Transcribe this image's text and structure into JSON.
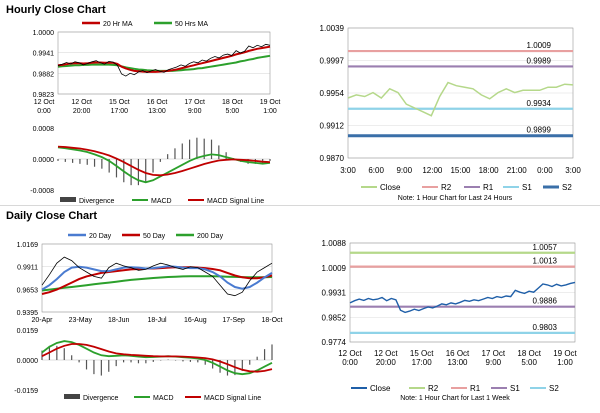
{
  "sections": {
    "hourly": "Hourly Close Chart",
    "daily": "Daily Close Chart"
  },
  "chart_data": [
    {
      "id": "hourly_price",
      "type": "line",
      "legend": [
        "20 Hr MA",
        "50 Hrs MA"
      ],
      "ytick_labels": [
        "1.0000",
        "0.9941",
        "0.9882",
        "0.9823"
      ],
      "ylim": [
        0.9823,
        1.0
      ],
      "xtick_labels": [
        [
          "12 Oct",
          "0:00"
        ],
        [
          "12 Oct",
          "20:00"
        ],
        [
          "15 Oct",
          "17:00"
        ],
        [
          "16 Oct",
          "13:00"
        ],
        [
          "17 Oct",
          "9:00"
        ],
        [
          "18 Oct",
          "5:00"
        ],
        [
          "19 Oct",
          "1:00"
        ]
      ],
      "series": [
        {
          "name": "Close",
          "color": "#000000",
          "values": [
            0.9904,
            0.9908,
            0.9913,
            0.9909,
            0.9915,
            0.9912,
            0.9906,
            0.991,
            0.9915,
            0.9918,
            0.9912,
            0.9908,
            0.9916,
            0.9914,
            0.9905,
            0.988,
            0.9874,
            0.9882,
            0.9878,
            0.9886,
            0.989,
            0.9884,
            0.9889,
            0.9893,
            0.9888,
            0.9885,
            0.9892,
            0.9896,
            0.99,
            0.9906,
            0.9902,
            0.991,
            0.9915,
            0.9912,
            0.992,
            0.9917,
            0.9925,
            0.993,
            0.9926,
            0.9934,
            0.9937,
            0.9933,
            0.9947,
            0.994,
            0.9945,
            0.996,
            0.9955,
            0.9962,
            0.9958,
            0.9965,
            0.9962
          ]
        },
        {
          "name": "20 Hr MA",
          "color": "#c00000",
          "values": [
            0.9905,
            0.9906,
            0.9908,
            0.991,
            0.9911,
            0.9911,
            0.991,
            0.9911,
            0.9912,
            0.9913,
            0.9913,
            0.9912,
            0.9912,
            0.9912,
            0.9909,
            0.9901,
            0.9896,
            0.9892,
            0.9889,
            0.9888,
            0.9887,
            0.9886,
            0.9886,
            0.9886,
            0.9887,
            0.9888,
            0.9889,
            0.9891,
            0.9893,
            0.9896,
            0.9899,
            0.9902,
            0.9905,
            0.9908,
            0.9911,
            0.9914,
            0.9917,
            0.992,
            0.9923,
            0.9926,
            0.9929,
            0.9932,
            0.9936,
            0.9939,
            0.9942,
            0.9946,
            0.9949,
            0.9952,
            0.9954,
            0.9956,
            0.9958
          ]
        },
        {
          "name": "50 Hrs MA",
          "color": "#2ca02c",
          "values": [
            0.9901,
            0.9902,
            0.9903,
            0.9904,
            0.9905,
            0.9905,
            0.9906,
            0.9906,
            0.9907,
            0.9907,
            0.9907,
            0.9907,
            0.9907,
            0.9906,
            0.9905,
            0.9902,
            0.9899,
            0.9897,
            0.9895,
            0.9893,
            0.9892,
            0.9891,
            0.989,
            0.9889,
            0.9889,
            0.9889,
            0.9889,
            0.9889,
            0.989,
            0.9891,
            0.9892,
            0.9893,
            0.9894,
            0.9896,
            0.9897,
            0.9899,
            0.9901,
            0.9903,
            0.9905,
            0.9907,
            0.9909,
            0.9911,
            0.9913,
            0.9916,
            0.9918,
            0.9921,
            0.9923,
            0.9926,
            0.9928,
            0.993,
            0.9932
          ]
        }
      ]
    },
    {
      "id": "hourly_macd",
      "type": "line",
      "legend": [
        "Divergence",
        "MACD",
        "MACD Signal Line"
      ],
      "ytick_labels": [
        "0.0008",
        "0.0000",
        "-0.0008"
      ],
      "ylim": [
        -0.0008,
        0.0008
      ],
      "series": [
        {
          "name": "MACD",
          "color": "#2ca02c",
          "values": [
            0.0003,
            0.00028,
            0.00025,
            0.00022,
            0.00018,
            0.00012,
            5e-05,
            -5e-05,
            -0.00018,
            -0.00032,
            -0.00045,
            -0.00055,
            -0.0006,
            -0.00055,
            -0.00045,
            -0.00035,
            -0.00025,
            -0.00015,
            -5e-05,
            3e-05,
            8e-05,
            0.00012,
            0.0001,
            5e-05,
            0.0,
            -5e-05,
            -8e-05,
            -0.0001,
            -0.00012,
            -0.0001
          ]
        },
        {
          "name": "MACD Signal Line",
          "color": "#c00000",
          "values": [
            0.00032,
            0.00031,
            0.00029,
            0.00027,
            0.00024,
            0.0002,
            0.00015,
            9e-05,
            1e-05,
            -8e-05,
            -0.00018,
            -0.00028,
            -0.00036,
            -0.00041,
            -0.00042,
            -0.0004,
            -0.00036,
            -0.00031,
            -0.00025,
            -0.00019,
            -0.00013,
            -8e-05,
            -4e-05,
            -2e-05,
            -1e-05,
            -2e-05,
            -3e-05,
            -5e-05,
            -7e-05,
            -8e-05
          ]
        }
      ]
    },
    {
      "id": "hourly_pivots",
      "type": "line",
      "legend": [
        "Close",
        "R2",
        "R1",
        "S1",
        "S2"
      ],
      "ytick_labels": [
        "1.0039",
        "0.9997",
        "0.9954",
        "0.9912",
        "0.9870"
      ],
      "ylim": [
        0.987,
        1.0039
      ],
      "xtick_labels": [
        "3:00",
        "6:00",
        "9:00",
        "12:00",
        "15:00",
        "18:00",
        "21:00",
        "0:00",
        "3:00"
      ],
      "levels": [
        {
          "name": "R2",
          "value": 1.0009,
          "label": "1.0009",
          "color": "#e8a0a0"
        },
        {
          "name": "R1",
          "value": 0.9989,
          "label": "0.9989",
          "color": "#9b7fb0"
        },
        {
          "name": "S1",
          "value": 0.9934,
          "label": "0.9934",
          "color": "#8fd3e8"
        },
        {
          "name": "S2",
          "value": 0.9899,
          "label": "0.9899",
          "color": "#3a6fa8"
        }
      ],
      "series": [
        {
          "name": "Close",
          "color": "#b5d88a",
          "values": [
            0.9948,
            0.9952,
            0.995,
            0.9955,
            0.9948,
            0.996,
            0.9955,
            0.994,
            0.9935,
            0.993,
            0.9925,
            0.995,
            0.9968,
            0.9964,
            0.9962,
            0.996,
            0.9952,
            0.9947,
            0.9955,
            0.996,
            0.9955,
            0.9958,
            0.9958,
            0.9958,
            0.9962,
            0.9962,
            0.9966,
            0.9965
          ]
        }
      ],
      "note": "Note: 1 Hour Chart for Last 24 Hours"
    },
    {
      "id": "daily_price",
      "type": "line",
      "legend": [
        "20 Day",
        "50 Day",
        "200 Day"
      ],
      "ytick_labels": [
        "1.0169",
        "0.9911",
        "0.9653",
        "0.9395"
      ],
      "ylim": [
        0.9395,
        1.0169
      ],
      "xtick_labels": [
        "20-Apr",
        "23-May",
        "18-Jun",
        "18-Jul",
        "16-Aug",
        "17-Sep",
        "18-Oct"
      ],
      "series": [
        {
          "name": "Close",
          "color": "#000000",
          "values": [
            0.97,
            0.982,
            0.995,
            1.002,
            0.998,
            0.99,
            0.985,
            0.98,
            0.978,
            0.99,
            0.995,
            0.992,
            0.99,
            0.987,
            0.988,
            0.992,
            0.995,
            0.993,
            0.99,
            0.988,
            0.991,
            0.99,
            0.985,
            0.98,
            0.97,
            0.96,
            0.958,
            0.962,
            0.975,
            0.985,
            0.99,
            0.995
          ]
        },
        {
          "name": "20 Day",
          "color": "#4a7bd0",
          "values": [
            0.965,
            0.97,
            0.977,
            0.985,
            0.99,
            0.991,
            0.99,
            0.988,
            0.986,
            0.986,
            0.988,
            0.99,
            0.9905,
            0.99,
            0.989,
            0.9895,
            0.9905,
            0.9915,
            0.991,
            0.99,
            0.9895,
            0.9895,
            0.988,
            0.985,
            0.98,
            0.973,
            0.968,
            0.966,
            0.968,
            0.973,
            0.979,
            0.984
          ]
        },
        {
          "name": "50 Day",
          "color": "#c00000",
          "values": [
            0.96,
            0.962,
            0.965,
            0.969,
            0.973,
            0.977,
            0.98,
            0.982,
            0.984,
            0.985,
            0.986,
            0.987,
            0.988,
            0.9885,
            0.989,
            0.989,
            0.9895,
            0.99,
            0.9905,
            0.9905,
            0.9905,
            0.99,
            0.9895,
            0.9885,
            0.987,
            0.984,
            0.981,
            0.979,
            0.978,
            0.978,
            0.979,
            0.981
          ]
        },
        {
          "name": "200 Day",
          "color": "#2ca02c",
          "values": [
            0.964,
            0.965,
            0.966,
            0.967,
            0.968,
            0.969,
            0.97,
            0.971,
            0.972,
            0.973,
            0.974,
            0.975,
            0.976,
            0.9768,
            0.9775,
            0.9782,
            0.9788,
            0.9793,
            0.9797,
            0.98,
            0.9802,
            0.9803,
            0.9803,
            0.9802,
            0.98,
            0.9797,
            0.9794,
            0.9792,
            0.979,
            0.979,
            0.9791,
            0.9793
          ]
        }
      ]
    },
    {
      "id": "daily_macd",
      "type": "line",
      "legend": [
        "Divergence",
        "MACD",
        "MACD Signal Line"
      ],
      "ytick_labels": [
        "0.0159",
        "0.0000",
        "-0.0159"
      ],
      "ylim": [
        -0.0159,
        0.0159
      ],
      "series": [
        {
          "name": "MACD",
          "color": "#2ca02c",
          "values": [
            0.004,
            0.007,
            0.009,
            0.01,
            0.0095,
            0.008,
            0.006,
            0.004,
            0.0025,
            0.002,
            0.0022,
            0.0025,
            0.0022,
            0.0018,
            0.0015,
            0.0016,
            0.0018,
            0.002,
            0.0018,
            0.0015,
            0.0012,
            0.0008,
            0.0,
            -0.0015,
            -0.0035,
            -0.0055,
            -0.007,
            -0.0075,
            -0.007,
            -0.0055,
            -0.0035,
            -0.0015
          ]
        },
        {
          "name": "MACD Signal Line",
          "color": "#c00000",
          "values": [
            0.002,
            0.004,
            0.006,
            0.0075,
            0.0085,
            0.0085,
            0.008,
            0.007,
            0.0058,
            0.0045,
            0.0035,
            0.003,
            0.0027,
            0.0025,
            0.0022,
            0.002,
            0.0019,
            0.0019,
            0.0019,
            0.0018,
            0.0016,
            0.0013,
            0.001,
            0.0003,
            -0.0008,
            -0.0022,
            -0.0038,
            -0.0052,
            -0.006,
            -0.0062,
            -0.0058,
            -0.0048
          ]
        }
      ]
    },
    {
      "id": "daily_pivots",
      "type": "line",
      "legend": [
        "Close",
        "R2",
        "R1",
        "S1",
        "S2"
      ],
      "ytick_labels": [
        "1.0088",
        "1.0009",
        "0.9931",
        "0.9852",
        "0.9774"
      ],
      "ylim": [
        0.9774,
        1.0088
      ],
      "xtick_labels": [
        [
          "12 Oct",
          "0:00"
        ],
        [
          "12 Oct",
          "20:00"
        ],
        [
          "15 Oct",
          "17:00"
        ],
        [
          "16 Oct",
          "13:00"
        ],
        [
          "17 Oct",
          "9:00"
        ],
        [
          "18 Oct",
          "5:00"
        ],
        [
          "19 Oct",
          "1:00"
        ]
      ],
      "levels": [
        {
          "name": "R2",
          "value": 1.0057,
          "label": "1.0057",
          "color": "#b5d88a"
        },
        {
          "name": "R1",
          "value": 1.0013,
          "label": "1.0013",
          "color": "#e8a0a0"
        },
        {
          "name": "S1",
          "value": 0.9886,
          "label": "0.9886",
          "color": "#9b7fb0"
        },
        {
          "name": "S2",
          "value": 0.9803,
          "label": "0.9803",
          "color": "#8fd3e8"
        }
      ],
      "series": [
        {
          "name": "Close",
          "color": "#1f5fa8",
          "values": [
            0.9898,
            0.9905,
            0.991,
            0.9906,
            0.9912,
            0.9908,
            0.991,
            0.9915,
            0.9905,
            0.9912,
            0.9908,
            0.9875,
            0.9868,
            0.9872,
            0.9878,
            0.9874,
            0.988,
            0.9885,
            0.9882,
            0.9888,
            0.9895,
            0.9892,
            0.9898,
            0.9895,
            0.99,
            0.9906,
            0.9903,
            0.9908,
            0.9905,
            0.991,
            0.9915,
            0.9912,
            0.9918,
            0.9915,
            0.992,
            0.9918,
            0.9938,
            0.9932,
            0.9928,
            0.9935,
            0.9932,
            0.9945,
            0.9958,
            0.9955,
            0.995,
            0.9957,
            0.9952,
            0.9955,
            0.996,
            0.9963
          ]
        }
      ],
      "note": "Note: 1 Hour Chart for Last 1 Week"
    }
  ]
}
